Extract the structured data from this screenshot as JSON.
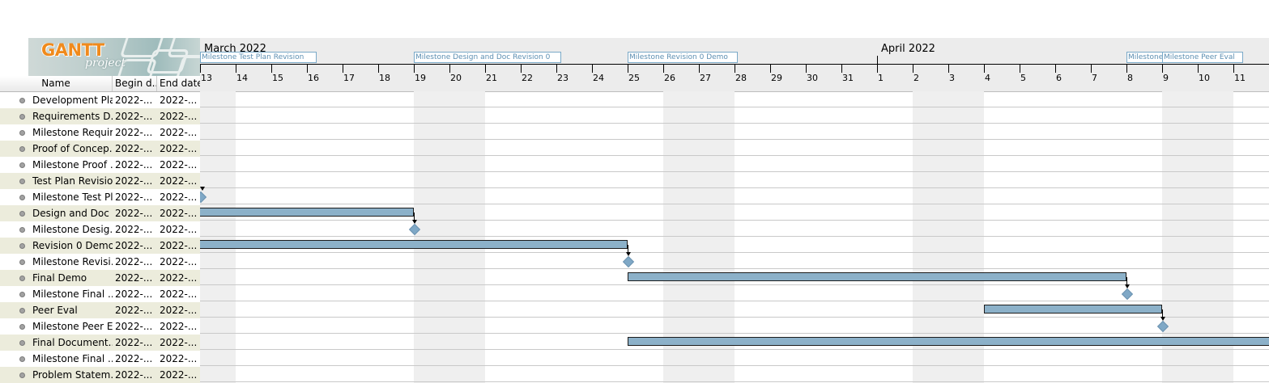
{
  "logo": {
    "text": "GANTT",
    "sub": "project"
  },
  "table": {
    "headers": {
      "name": "Name",
      "begin": "Begin d...",
      "end": "End date"
    },
    "rows": [
      {
        "name": "Development Plan",
        "begin": "2022-...",
        "end": "2022-..."
      },
      {
        "name": "Requirements D...",
        "begin": "2022-...",
        "end": "2022-..."
      },
      {
        "name": "Milestone Requir...",
        "begin": "2022-...",
        "end": "2022-..."
      },
      {
        "name": "Proof of Concep...",
        "begin": "2022-...",
        "end": "2022-..."
      },
      {
        "name": "Milestone Proof ...",
        "begin": "2022-...",
        "end": "2022-..."
      },
      {
        "name": "Test Plan Revision",
        "begin": "2022-...",
        "end": "2022-..."
      },
      {
        "name": "Milestone Test Pl...",
        "begin": "2022-...",
        "end": "2022-..."
      },
      {
        "name": "Design and Doc ...",
        "begin": "2022-...",
        "end": "2022-..."
      },
      {
        "name": "Milestone Desig...",
        "begin": "2022-...",
        "end": "2022-..."
      },
      {
        "name": "Revision 0 Demo",
        "begin": "2022-...",
        "end": "2022-..."
      },
      {
        "name": "Milestone Revisi...",
        "begin": "2022-...",
        "end": "2022-..."
      },
      {
        "name": "Final Demo",
        "begin": "2022-...",
        "end": "2022-..."
      },
      {
        "name": "Milestone Final ...",
        "begin": "2022-...",
        "end": "2022-..."
      },
      {
        "name": "Peer Eval",
        "begin": "2022-...",
        "end": "2022-..."
      },
      {
        "name": "Milestone Peer E...",
        "begin": "2022-...",
        "end": "2022-..."
      },
      {
        "name": "Final Document...",
        "begin": "2022-...",
        "end": "2022-..."
      },
      {
        "name": "Milestone Final ...",
        "begin": "2022-...",
        "end": "2022-..."
      },
      {
        "name": "Problem Statem...",
        "begin": "2022-...",
        "end": "2022-..."
      }
    ]
  },
  "timeline": {
    "months": [
      {
        "label": "March 2022",
        "first_day": 13
      },
      {
        "label": "April 2022",
        "first_day": 1
      }
    ],
    "days": [
      "13",
      "14",
      "15",
      "16",
      "17",
      "18",
      "19",
      "20",
      "21",
      "22",
      "23",
      "24",
      "25",
      "26",
      "27",
      "28",
      "29",
      "30",
      "31",
      "1",
      "2",
      "3",
      "4",
      "5",
      "6",
      "7",
      "8",
      "9",
      "10",
      "11"
    ],
    "weekend_days": [
      "13",
      "19",
      "20",
      "26",
      "27",
      "2",
      "3",
      "9",
      "10"
    ],
    "milestone_flags": [
      {
        "label": "Milestone Test Plan Revision",
        "day": "13"
      },
      {
        "label": "Milestone Design and Doc Revision 0",
        "day": "19"
      },
      {
        "label": "Milestone Revision 0 Demo",
        "day": "25"
      },
      {
        "label": "Milestone",
        "day": "8"
      },
      {
        "label": "Milestone Peer Eval",
        "day": "9"
      }
    ]
  },
  "chart_tasks": [
    {
      "row": 7,
      "type": "task",
      "start_day": "12",
      "end_day": "19"
    },
    {
      "row": 9,
      "type": "task",
      "start_day": "12",
      "end_day": "25"
    },
    {
      "row": 11,
      "type": "task",
      "start_day": "25",
      "end_day": "8"
    },
    {
      "row": 13,
      "type": "task",
      "start_day": "4",
      "end_day": "9"
    },
    {
      "row": 15,
      "type": "task",
      "start_day": "25",
      "end_day": "12"
    },
    {
      "row": 6,
      "type": "milestone",
      "day": "13"
    },
    {
      "row": 8,
      "type": "milestone",
      "day": "19"
    },
    {
      "row": 10,
      "type": "milestone",
      "day": "25"
    },
    {
      "row": 12,
      "type": "milestone",
      "day": "8"
    },
    {
      "row": 14,
      "type": "milestone",
      "day": "9"
    }
  ],
  "colors": {
    "bar": "#8cb1c9",
    "milestone": "#7fa8c6",
    "weekend": "#efefef",
    "alt_row": "#ececdc",
    "logo_orange": "#f08a1c"
  }
}
